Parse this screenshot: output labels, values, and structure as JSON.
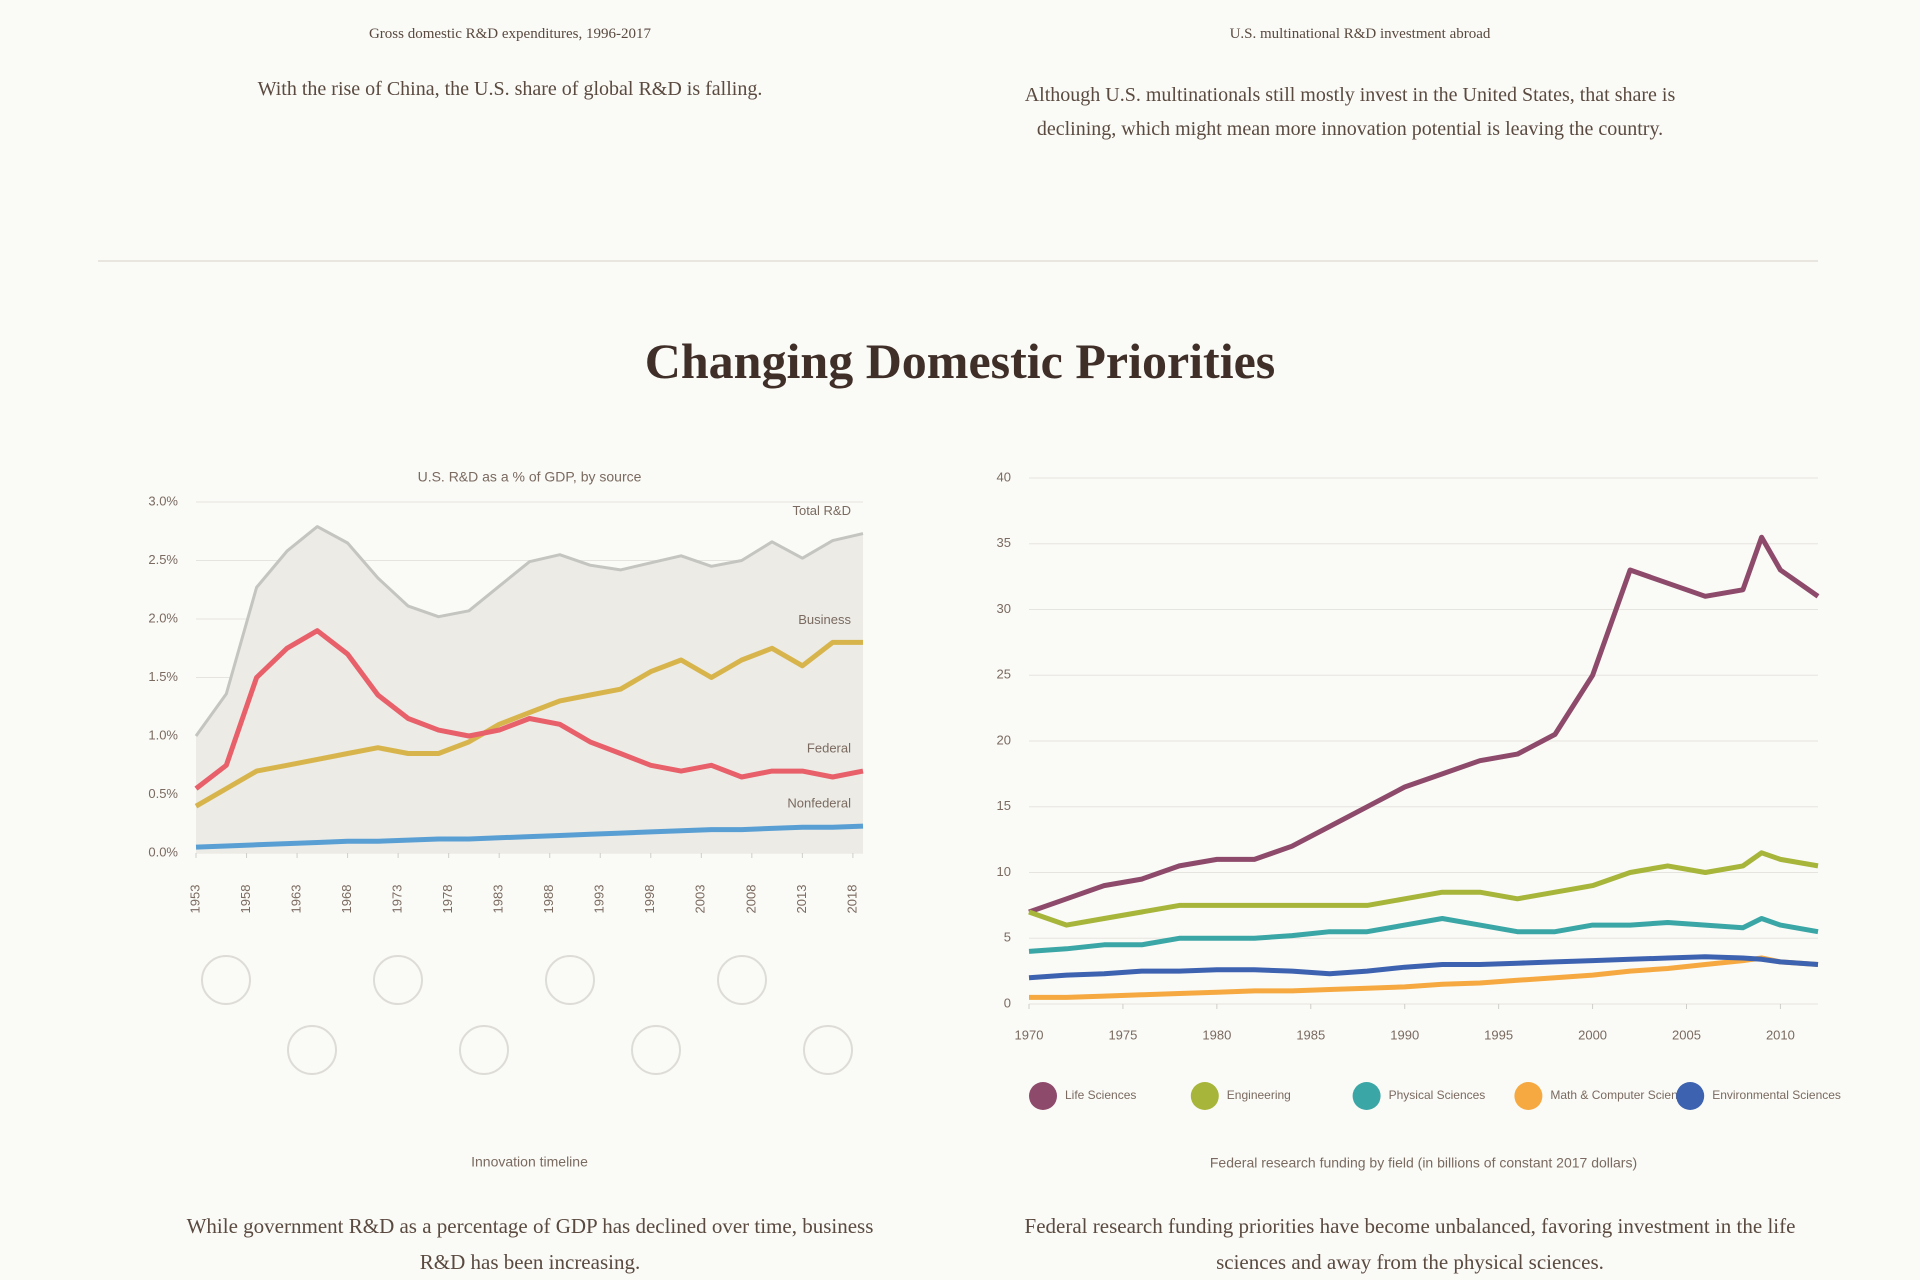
{
  "top_section": {
    "panels": [
      {
        "caption": "Gross domestic R&D expenditures, 1996-2017",
        "description": "With the rise of China, the U.S. share of global R&D is falling."
      },
      {
        "caption": "U.S. multinational R&D investment abroad",
        "description": "Although U.S. multinationals still mostly invest in the United States, that share is declining, which might mean more innovation potential is leaving the country."
      }
    ]
  },
  "section_title": "Changing Domestic Priorities",
  "chart_data": [
    {
      "type": "line",
      "title": "U.S. R&D as a % of GDP, by source",
      "caption": "Innovation timeline",
      "x": [
        1953,
        1956,
        1959,
        1962,
        1965,
        1968,
        1971,
        1974,
        1977,
        1980,
        1983,
        1986,
        1989,
        1992,
        1995,
        1998,
        2001,
        2004,
        2007,
        2010,
        2013,
        2016,
        2019
      ],
      "xlim": [
        1953,
        2019
      ],
      "xticks": [
        1953,
        1958,
        1963,
        1968,
        1973,
        1978,
        1983,
        1988,
        1993,
        1998,
        2003,
        2008,
        2013,
        2018
      ],
      "ylim": [
        0,
        3
      ],
      "yticks": [
        {
          "value": 0,
          "label": "0.0%"
        },
        {
          "value": 0.5,
          "label": "0.5%"
        },
        {
          "value": 1,
          "label": "1.0%"
        },
        {
          "value": 1.5,
          "label": "1.5%"
        },
        {
          "value": 2,
          "label": "2.0%"
        },
        {
          "value": 2.5,
          "label": "2.5%"
        },
        {
          "value": 3,
          "label": "3.0%"
        }
      ],
      "grid": true,
      "series": [
        {
          "name": "Total R&D",
          "color": "#c4c4c0",
          "style": "area",
          "values": [
            1.0,
            1.36,
            2.27,
            2.58,
            2.79,
            2.65,
            2.35,
            2.11,
            2.02,
            2.07,
            2.28,
            2.49,
            2.55,
            2.46,
            2.42,
            2.48,
            2.54,
            2.45,
            2.5,
            2.66,
            2.52,
            2.67,
            2.73
          ]
        },
        {
          "name": "Business",
          "color": "#d8b54c",
          "values": [
            0.4,
            0.55,
            0.7,
            0.75,
            0.8,
            0.85,
            0.9,
            0.85,
            0.85,
            0.95,
            1.1,
            1.2,
            1.3,
            1.35,
            1.4,
            1.55,
            1.65,
            1.5,
            1.65,
            1.75,
            1.6,
            1.8,
            1.8
          ]
        },
        {
          "name": "Federal",
          "color": "#e8606a",
          "values": [
            0.55,
            0.75,
            1.5,
            1.75,
            1.9,
            1.7,
            1.35,
            1.15,
            1.05,
            1.0,
            1.05,
            1.15,
            1.1,
            0.95,
            0.85,
            0.75,
            0.7,
            0.75,
            0.65,
            0.7,
            0.7,
            0.65,
            0.7
          ]
        },
        {
          "name": "Nonfederal",
          "color": "#5a9fd4",
          "values": [
            0.05,
            0.06,
            0.07,
            0.08,
            0.09,
            0.1,
            0.1,
            0.11,
            0.12,
            0.12,
            0.13,
            0.14,
            0.15,
            0.16,
            0.17,
            0.18,
            0.19,
            0.2,
            0.2,
            0.21,
            0.22,
            0.22,
            0.23
          ]
        }
      ]
    },
    {
      "type": "line",
      "caption": "Federal research funding by field (in billions of constant 2017 dollars)",
      "x": [
        1970,
        1972,
        1974,
        1976,
        1978,
        1980,
        1982,
        1984,
        1986,
        1988,
        1990,
        1992,
        1994,
        1996,
        1998,
        2000,
        2002,
        2004,
        2006,
        2008,
        2009,
        2010,
        2012
      ],
      "xlim": [
        1970,
        2012
      ],
      "xticks": [
        1970,
        1975,
        1980,
        1985,
        1990,
        1995,
        2000,
        2005,
        2010
      ],
      "ylim": [
        0,
        40
      ],
      "yticks": [
        0,
        5,
        10,
        15,
        20,
        25,
        30,
        35,
        40
      ],
      "grid": true,
      "series": [
        {
          "name": "Life Sciences",
          "color": "#8e4a6b",
          "values": [
            7,
            8,
            9,
            9.5,
            10.5,
            11,
            11,
            12,
            13.5,
            15,
            16.5,
            17.5,
            18.5,
            19,
            20.5,
            25,
            33,
            32,
            31,
            31.5,
            35.5,
            33,
            31
          ]
        },
        {
          "name": "Engineering",
          "color": "#a7b53a",
          "values": [
            7,
            6,
            6.5,
            7,
            7.5,
            7.5,
            7.5,
            7.5,
            7.5,
            7.5,
            8,
            8.5,
            8.5,
            8,
            8.5,
            9,
            10,
            10.5,
            10,
            10.5,
            11.5,
            11,
            10.5
          ]
        },
        {
          "name": "Physical Sciences",
          "color": "#3aa6a6",
          "values": [
            4,
            4.2,
            4.5,
            4.5,
            5,
            5,
            5,
            5.2,
            5.5,
            5.5,
            6,
            6.5,
            6,
            5.5,
            5.5,
            6,
            6,
            6.2,
            6,
            5.8,
            6.5,
            6,
            5.5
          ]
        },
        {
          "name": "Math & Computer Sciences",
          "color": "#f5a940",
          "values": [
            0.5,
            0.5,
            0.6,
            0.7,
            0.8,
            0.9,
            1,
            1,
            1.1,
            1.2,
            1.3,
            1.5,
            1.6,
            1.8,
            2,
            2.2,
            2.5,
            2.7,
            3,
            3.3,
            3.5,
            3.2,
            3
          ]
        },
        {
          "name": "Environmental Sciences",
          "color": "#3d62b0",
          "values": [
            2,
            2.2,
            2.3,
            2.5,
            2.5,
            2.6,
            2.6,
            2.5,
            2.3,
            2.5,
            2.8,
            3,
            3,
            3.1,
            3.2,
            3.3,
            3.4,
            3.5,
            3.6,
            3.5,
            3.4,
            3.2,
            3
          ]
        }
      ]
    }
  ],
  "notes": [
    "While government R&D as a percentage of GDP has declined over time, business R&D has been increasing.",
    "Federal research funding priorities have become unbalanced, favoring investment in the life sciences and away from the physical sciences."
  ]
}
